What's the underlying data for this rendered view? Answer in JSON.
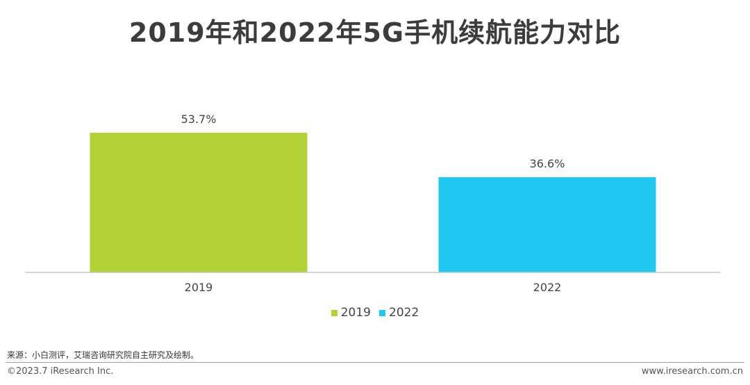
{
  "title": "2019年和2022年5G手机续航能力对比",
  "chart_data": {
    "type": "bar",
    "categories": [
      "2019",
      "2022"
    ],
    "values": [
      53.7,
      36.6
    ],
    "value_labels": [
      "53.7%",
      "36.6%"
    ],
    "colors": [
      "#b2d235",
      "#1fc8f0"
    ],
    "legend": [
      "2019",
      "2022"
    ],
    "legend_position": "bottom-center",
    "ylim": [
      0,
      60
    ],
    "grid": false
  },
  "source": "来源：小白测评，艾瑞咨询研究院自主研究及绘制。",
  "copyright": "©2023.7 iResearch Inc.",
  "website": "www.iresearch.com.cn"
}
